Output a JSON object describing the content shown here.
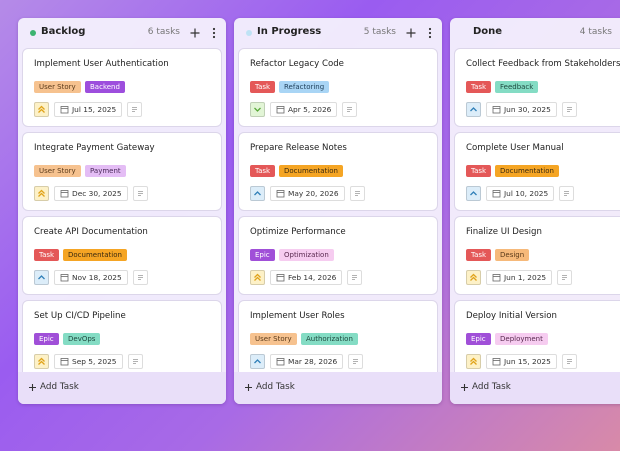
{
  "board": {
    "columns": [
      {
        "title": "Backlog",
        "count": "6 tasks",
        "dot": "#3cb371",
        "add": "Add Task",
        "cards": [
          {
            "title": "Implement User Authentication",
            "tags": [
              {
                "text": "User Story",
                "bg": "#f6c28f",
                "fg": "#5a3a1a"
              },
              {
                "text": "Backend",
                "bg": "#9d4edd",
                "fg": "#ffffff"
              }
            ],
            "date": "Jul 15, 2025",
            "icon": {
              "shape": "double-up",
              "color": "#e0a31a",
              "bg": "#fdf1c7"
            }
          },
          {
            "title": "Integrate Payment Gateway",
            "tags": [
              {
                "text": "User Story",
                "bg": "#f6c28f",
                "fg": "#5a3a1a"
              },
              {
                "text": "Payment",
                "bg": "#e4bdf5",
                "fg": "#4a2a5a"
              }
            ],
            "date": "Dec 30, 2025",
            "icon": {
              "shape": "double-up",
              "color": "#e0a31a",
              "bg": "#fdf1c7"
            }
          },
          {
            "title": "Create API Documentation",
            "tags": [
              {
                "text": "Task",
                "bg": "#e45858",
                "fg": "#ffffff"
              },
              {
                "text": "Documentation",
                "bg": "#f5a524",
                "fg": "#3a2a10"
              }
            ],
            "date": "Nov 18, 2025",
            "icon": {
              "shape": "up",
              "color": "#2f7fb8",
              "bg": "#dcedf9"
            }
          },
          {
            "title": "Set Up CI/CD Pipeline",
            "tags": [
              {
                "text": "Epic",
                "bg": "#a04fd8",
                "fg": "#ffffff"
              },
              {
                "text": "DevOps",
                "bg": "#84dcc4",
                "fg": "#1f4a3f"
              }
            ],
            "date": "Sep 5, 2025",
            "icon": {
              "shape": "double-up",
              "color": "#e0a31a",
              "bg": "#fdf1c7"
            }
          }
        ]
      },
      {
        "title": "In Progress",
        "count": "5 tasks",
        "dot": "#bfe3f5",
        "add": "Add Task",
        "cards": [
          {
            "title": "Refactor Legacy Code",
            "tags": [
              {
                "text": "Task",
                "bg": "#e45858",
                "fg": "#ffffff"
              },
              {
                "text": "Refactoring",
                "bg": "#a9d5f5",
                "fg": "#1f3f5a"
              }
            ],
            "date": "Apr 5, 2026",
            "icon": {
              "shape": "down",
              "color": "#5aa83a",
              "bg": "#e2f5d6"
            }
          },
          {
            "title": "Prepare Release Notes",
            "tags": [
              {
                "text": "Task",
                "bg": "#e45858",
                "fg": "#ffffff"
              },
              {
                "text": "Documentation",
                "bg": "#f5a524",
                "fg": "#3a2a10"
              }
            ],
            "date": "May 20, 2026",
            "icon": {
              "shape": "up",
              "color": "#2f7fb8",
              "bg": "#dcedf9"
            }
          },
          {
            "title": "Optimize Performance",
            "tags": [
              {
                "text": "Epic",
                "bg": "#a04fd8",
                "fg": "#ffffff"
              },
              {
                "text": "Optimization",
                "bg": "#f6ccf0",
                "fg": "#5a2a50"
              }
            ],
            "date": "Feb 14, 2026",
            "icon": {
              "shape": "double-up",
              "color": "#e0a31a",
              "bg": "#fdf1c7"
            }
          },
          {
            "title": "Implement User Roles",
            "tags": [
              {
                "text": "User Story",
                "bg": "#f6c28f",
                "fg": "#5a3a1a"
              },
              {
                "text": "Authorization",
                "bg": "#84dcc4",
                "fg": "#1f4a3f"
              }
            ],
            "date": "Mar 28, 2026",
            "icon": {
              "shape": "up",
              "color": "#2f7fb8",
              "bg": "#dcedf9"
            }
          }
        ]
      },
      {
        "title": "Done",
        "count": "4 tasks",
        "add": "Add Task",
        "cards": [
          {
            "title": "Collect Feedback from Stakeholders",
            "tags": [
              {
                "text": "Task",
                "bg": "#e45858",
                "fg": "#ffffff"
              },
              {
                "text": "Feedback",
                "bg": "#84dcc4",
                "fg": "#1f4a3f"
              }
            ],
            "date": "Jun 30, 2025",
            "icon": {
              "shape": "up",
              "color": "#2f7fb8",
              "bg": "#dcedf9"
            }
          },
          {
            "title": "Complete User Manual",
            "tags": [
              {
                "text": "Task",
                "bg": "#e45858",
                "fg": "#ffffff"
              },
              {
                "text": "Documentation",
                "bg": "#f5a524",
                "fg": "#3a2a10"
              }
            ],
            "date": "Jul 10, 2025",
            "icon": {
              "shape": "up",
              "color": "#2f7fb8",
              "bg": "#dcedf9"
            }
          },
          {
            "title": "Finalize UI Design",
            "tags": [
              {
                "text": "Task",
                "bg": "#e45858",
                "fg": "#ffffff"
              },
              {
                "text": "Design",
                "bg": "#f6b97a",
                "fg": "#5a3a1a"
              }
            ],
            "date": "Jun 1, 2025",
            "icon": {
              "shape": "double-up",
              "color": "#e0a31a",
              "bg": "#fdf1c7"
            }
          },
          {
            "title": "Deploy Initial Version",
            "tags": [
              {
                "text": "Epic",
                "bg": "#a04fd8",
                "fg": "#ffffff"
              },
              {
                "text": "Deployment",
                "bg": "#f6ccf0",
                "fg": "#5a2a50"
              }
            ],
            "date": "Jun 15, 2025",
            "icon": {
              "shape": "double-up",
              "color": "#e0a31a",
              "bg": "#fdf1c7"
            }
          }
        ]
      }
    ]
  }
}
